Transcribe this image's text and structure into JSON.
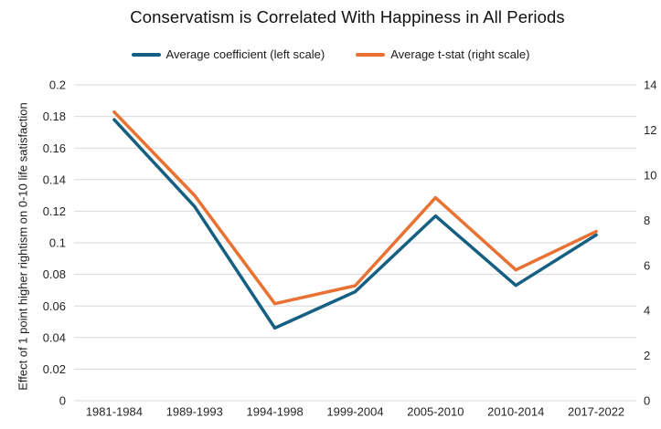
{
  "title": "Conservatism is Correlated With Happiness in All Periods",
  "y_left_label": "Effect of 1 point higher rightism on 0-10 life satisfaction",
  "legend": [
    {
      "label": "Average coefficient (left scale)",
      "color": "#156082"
    },
    {
      "label": "Average t-stat (right scale)",
      "color": "#E97132"
    }
  ],
  "colors": {
    "series_coefficient": "#156082",
    "series_tstat": "#E97132",
    "gridline": "#D9D9D9",
    "tick_text": "#262626"
  },
  "chart_data": {
    "type": "line",
    "title": "Conservatism is Correlated With Happiness in All Periods",
    "categories": [
      "1981-1984",
      "1989-1993",
      "1994-1998",
      "1999-2004",
      "2005-2010",
      "2010-2014",
      "2017-2022"
    ],
    "series": [
      {
        "name": "Average coefficient (left scale)",
        "axis": "left",
        "color": "#156082",
        "values": [
          0.178,
          0.123,
          0.046,
          0.069,
          0.117,
          0.073,
          0.105
        ]
      },
      {
        "name": "Average t-stat (right scale)",
        "axis": "right",
        "color": "#E97132",
        "values": [
          12.8,
          9.1,
          4.3,
          5.1,
          9.0,
          5.8,
          7.5
        ]
      }
    ],
    "left_axis": {
      "label": "Effect of 1 point higher rightism on 0-10 life satisfaction",
      "min": 0,
      "max": 0.2,
      "step": 0.02,
      "ticks": [
        "0",
        "0.02",
        "0.04",
        "0.06",
        "0.08",
        "0.1",
        "0.12",
        "0.14",
        "0.16",
        "0.18",
        "0.2"
      ]
    },
    "right_axis": {
      "min": 0,
      "max": 14,
      "step": 2,
      "ticks": [
        "0",
        "2",
        "4",
        "6",
        "8",
        "10",
        "12",
        "14"
      ]
    },
    "grid": true,
    "legend_position": "top"
  }
}
